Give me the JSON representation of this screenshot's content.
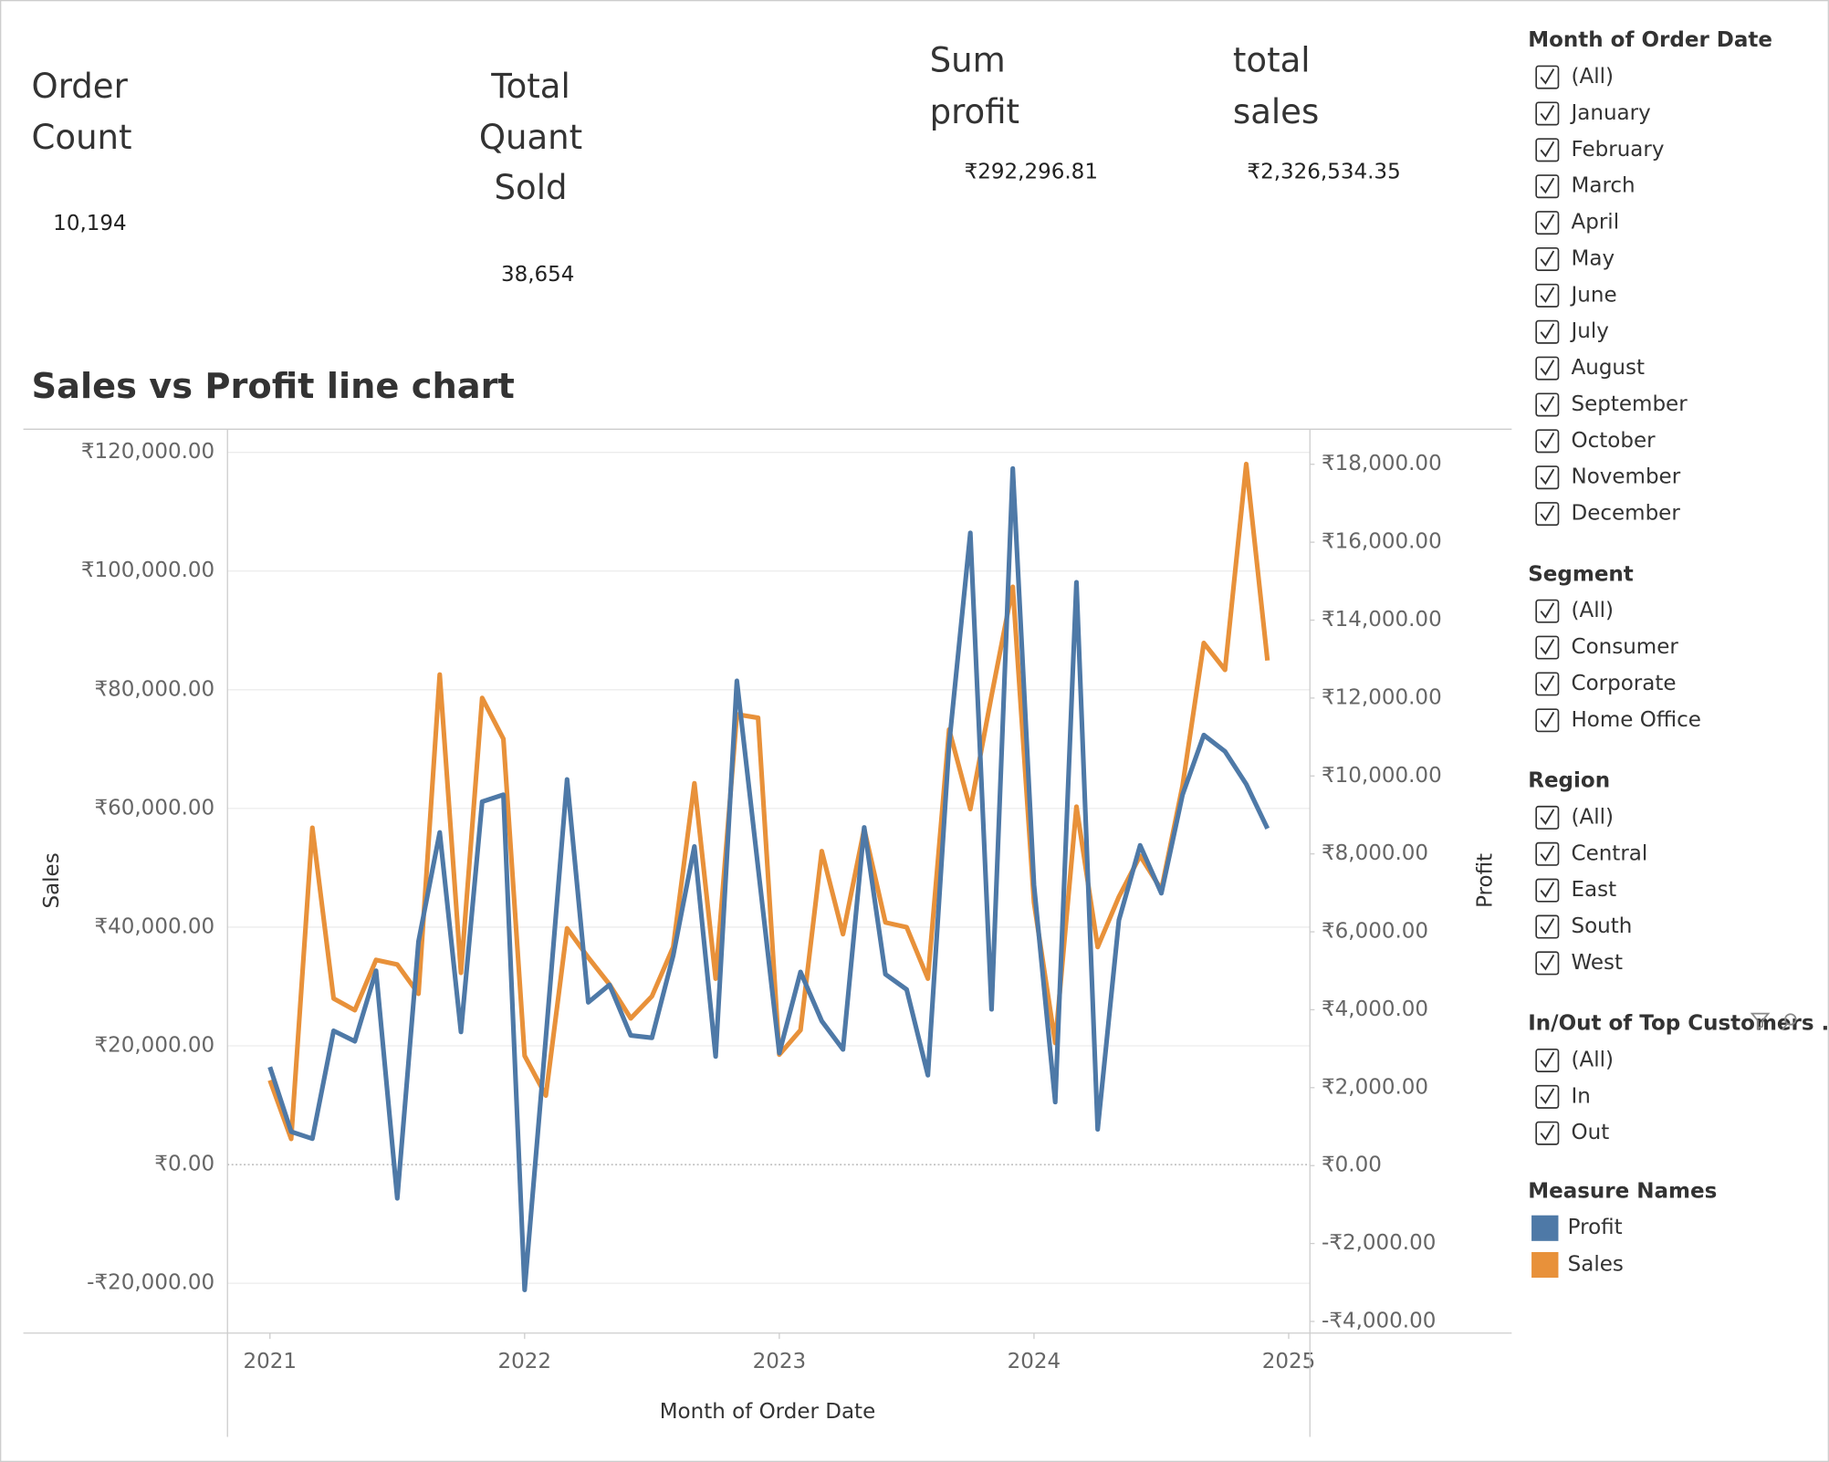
{
  "kpis": [
    {
      "label": "Order Count",
      "value": "10,194"
    },
    {
      "label": "Total Quant Sold",
      "value": "38,654"
    },
    {
      "label": "Sum profit",
      "value": "₹292,296.81"
    },
    {
      "label": "total sales",
      "value": "₹2,326,534.35"
    }
  ],
  "filters": [
    {
      "title": "Month of Order Date",
      "options": [
        "(All)",
        "January",
        "February",
        "March",
        "April",
        "May",
        "June",
        "July",
        "August",
        "September",
        "October",
        "November",
        "December"
      ]
    },
    {
      "title": "Segment",
      "options": [
        "(All)",
        "Consumer",
        "Corporate",
        "Home Office"
      ]
    },
    {
      "title": "Region",
      "options": [
        "(All)",
        "Central",
        "East",
        "South",
        "West"
      ]
    },
    {
      "title": "In/Out of Top Customers ...",
      "options": [
        "(All)",
        "In",
        "Out"
      ]
    }
  ],
  "chart_data": {
    "type": "line",
    "title": "Sales vs Profit line chart",
    "x_label": "Month of Order Date",
    "y_label": "Sales",
    "y2_label": "Profit",
    "legend_title": "Measure Names",
    "grid": true,
    "x": [
      "2021-01",
      "2021-02",
      "2021-03",
      "2021-04",
      "2021-05",
      "2021-06",
      "2021-07",
      "2021-08",
      "2021-09",
      "2021-10",
      "2021-11",
      "2021-12",
      "2022-01",
      "2022-02",
      "2022-03",
      "2022-04",
      "2022-05",
      "2022-06",
      "2022-07",
      "2022-08",
      "2022-09",
      "2022-10",
      "2022-11",
      "2022-12",
      "2023-01",
      "2023-02",
      "2023-03",
      "2023-04",
      "2023-05",
      "2023-06",
      "2023-07",
      "2023-08",
      "2023-09",
      "2023-10",
      "2023-11",
      "2023-12",
      "2024-01",
      "2024-02",
      "2024-03",
      "2024-04",
      "2024-05",
      "2024-06",
      "2024-07",
      "2024-08",
      "2024-09",
      "2024-10",
      "2024-11",
      "2024-12"
    ],
    "xlim": [
      "2020-11",
      "2025-02"
    ],
    "xticks": [
      {
        "value": "2021-01",
        "label": "2021"
      },
      {
        "value": "2022-01",
        "label": "2022"
      },
      {
        "value": "2023-01",
        "label": "2023"
      },
      {
        "value": "2024-01",
        "label": "2024"
      },
      {
        "value": "2025-01",
        "label": "2025"
      }
    ],
    "ylim": [
      -28400,
      123900
    ],
    "yticks": [
      {
        "value": -20000,
        "label": "-₹20,000.00"
      },
      {
        "value": 0,
        "label": "₹0.00"
      },
      {
        "value": 20000,
        "label": "₹20,000.00"
      },
      {
        "value": 40000,
        "label": "₹40,000.00"
      },
      {
        "value": 60000,
        "label": "₹60,000.00"
      },
      {
        "value": 80000,
        "label": "₹80,000.00"
      },
      {
        "value": 100000,
        "label": "₹100,000.00"
      },
      {
        "value": 120000,
        "label": "₹120,000.00"
      }
    ],
    "y2lim": [
      -4300,
      18900
    ],
    "y2ticks": [
      {
        "value": -4000,
        "label": "-₹4,000.00"
      },
      {
        "value": -2000,
        "label": "-₹2,000.00"
      },
      {
        "value": 0,
        "label": "₹0.00"
      },
      {
        "value": 2000,
        "label": "₹2,000.00"
      },
      {
        "value": 4000,
        "label": "₹4,000.00"
      },
      {
        "value": 6000,
        "label": "₹6,000.00"
      },
      {
        "value": 8000,
        "label": "₹8,000.00"
      },
      {
        "value": 10000,
        "label": "₹10,000.00"
      },
      {
        "value": 12000,
        "label": "₹12,000.00"
      },
      {
        "value": 14000,
        "label": "₹14,000.00"
      },
      {
        "value": 16000,
        "label": "₹16,000.00"
      },
      {
        "value": 18000,
        "label": "₹18,000.00"
      }
    ],
    "series": [
      {
        "name": "Profit",
        "color": "#4e79a7",
        "axis": "y2",
        "values": [
          2530,
          870,
          690,
          3460,
          3190,
          5000,
          -840,
          5750,
          8550,
          3430,
          9340,
          9520,
          -3190,
          3280,
          9910,
          4190,
          4640,
          3340,
          3280,
          5390,
          8190,
          2800,
          12440,
          7650,
          2890,
          4970,
          3710,
          2980,
          8680,
          4910,
          4520,
          2320,
          10810,
          16240,
          4010,
          17890,
          7200,
          1630,
          14970,
          930,
          6300,
          8220,
          6990,
          9520,
          11050,
          10630,
          9790,
          8650
        ]
      },
      {
        "name": "Sales",
        "color": "#e8913a",
        "values": [
          14190,
          4330,
          56750,
          27980,
          26010,
          34480,
          33700,
          28770,
          82560,
          32320,
          78620,
          71720,
          18330,
          11630,
          39800,
          34880,
          30340,
          24630,
          28370,
          36650,
          64240,
          31330,
          75860,
          75270,
          18520,
          22660,
          52810,
          38820,
          56550,
          40790,
          40000,
          31330,
          73300,
          59900,
          79010,
          97340,
          44140,
          20490,
          60300,
          36650,
          45120,
          52020,
          46310,
          63840,
          87880,
          83350,
          118030,
          84930
        ]
      }
    ]
  }
}
